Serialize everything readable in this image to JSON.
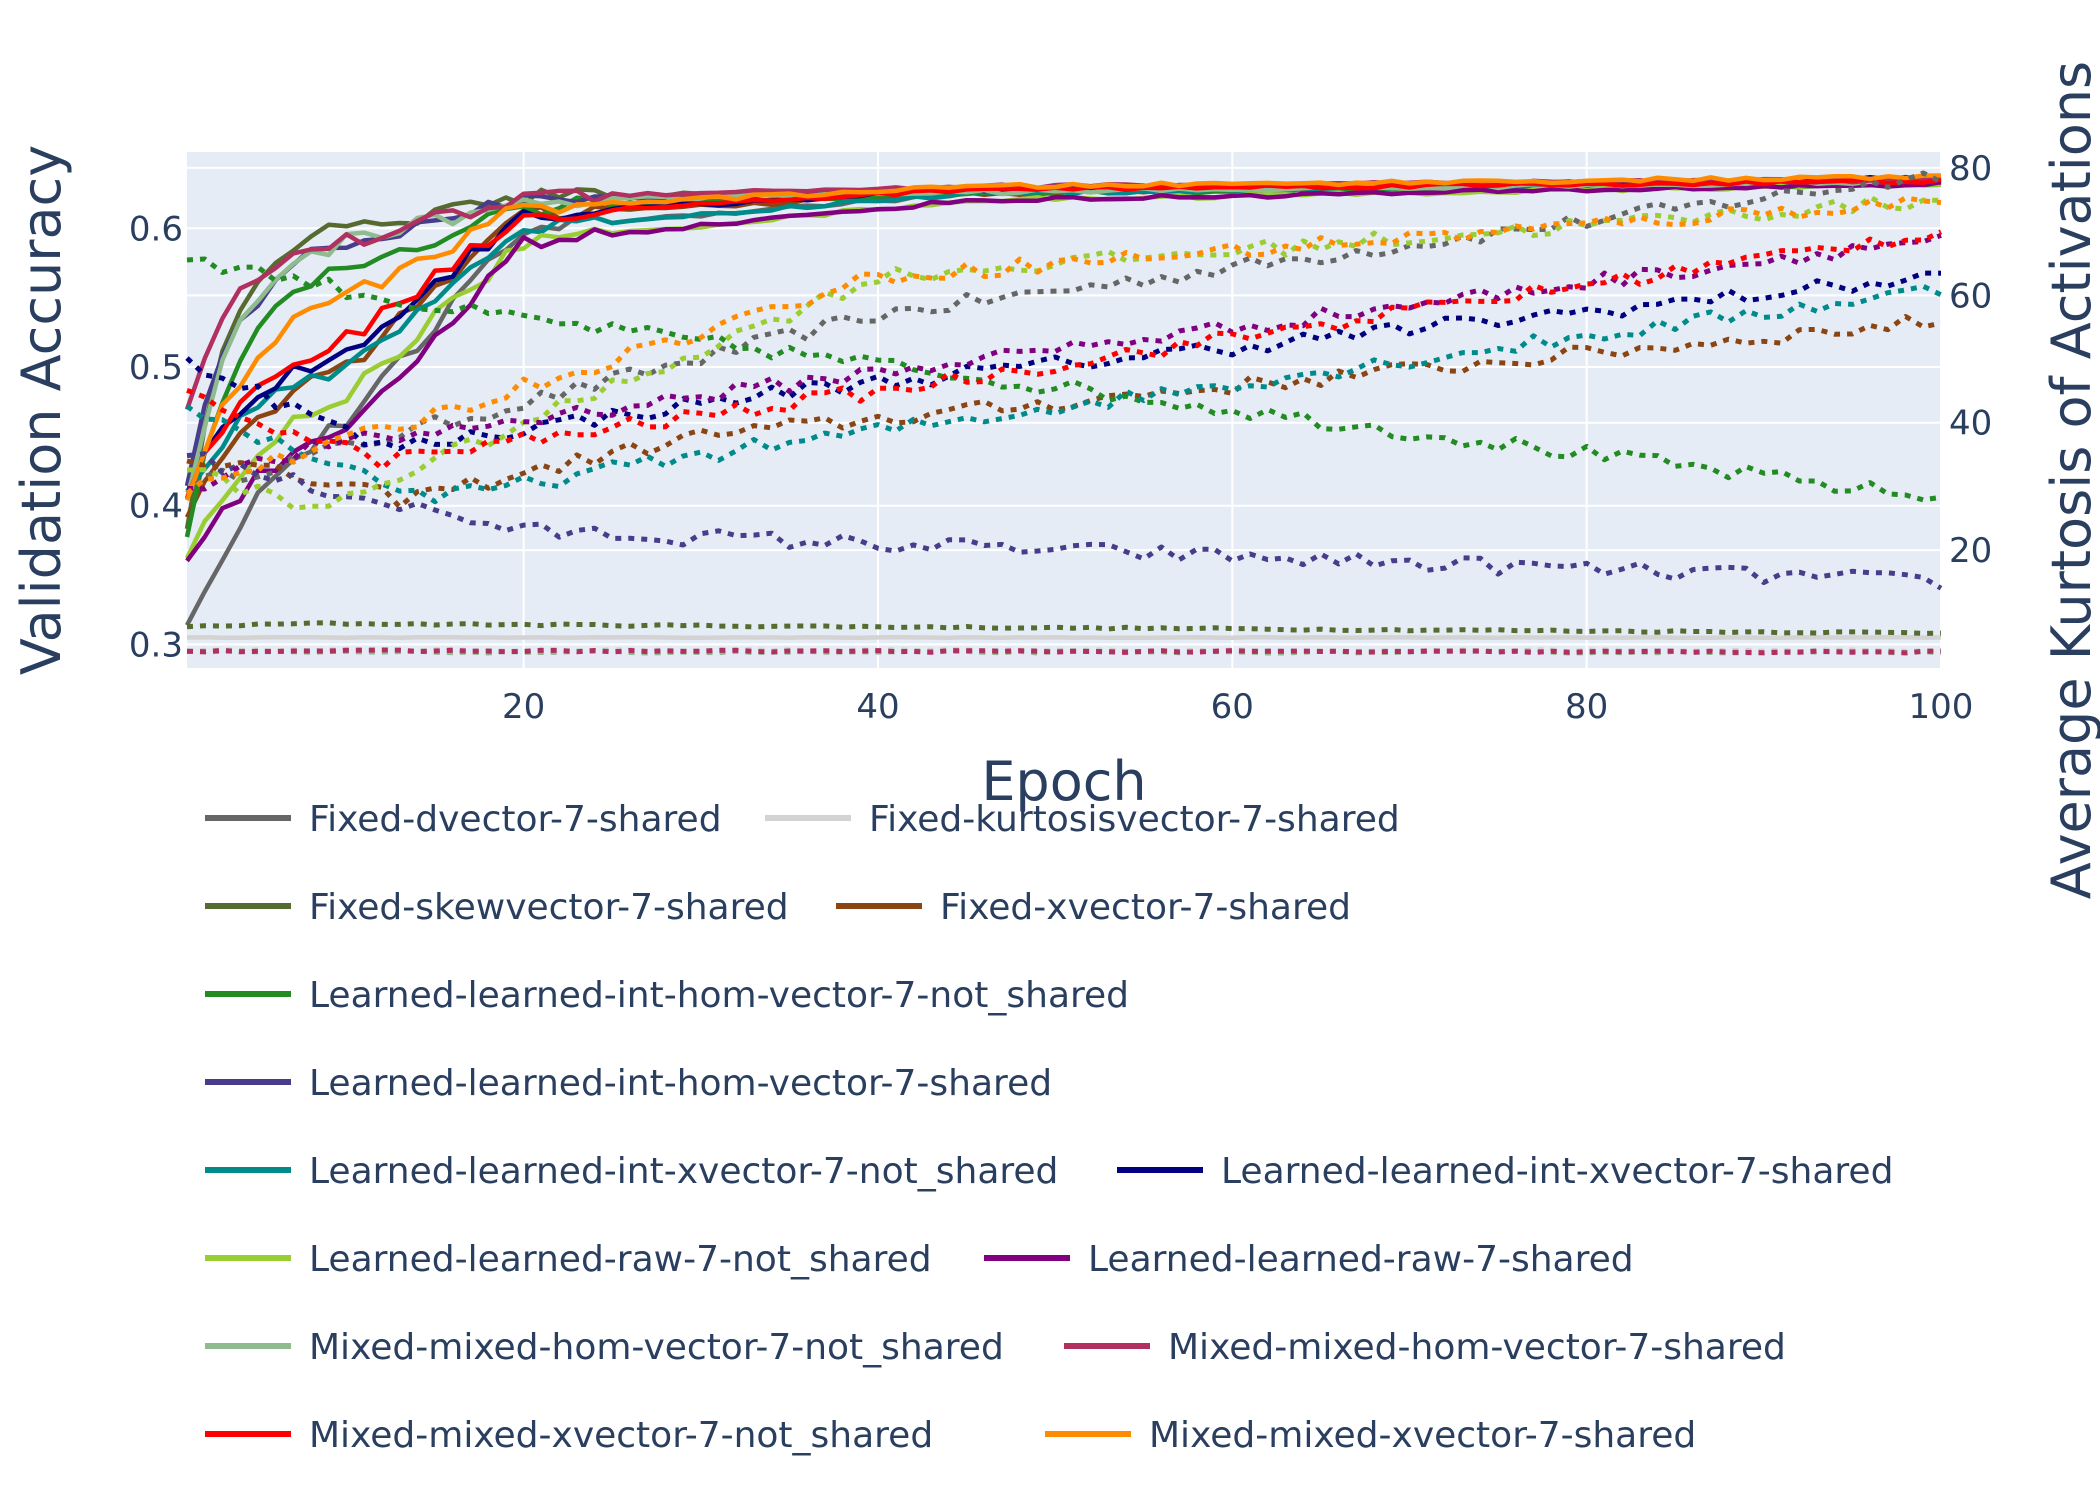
{
  "chart_data": {
    "type": "line",
    "xlabel": "Epoch",
    "ylabel": "Validation Accuracy",
    "y2label": "Average Kurtosis of Activations",
    "xlim": [
      1,
      100
    ],
    "ylim": [
      0.283,
      0.655
    ],
    "y2lim": [
      1.5,
      82.5
    ],
    "xticks": [
      20,
      40,
      60,
      80,
      100
    ],
    "yticks": [
      0.3,
      0.4,
      0.5,
      0.6
    ],
    "y2ticks": [
      20,
      40,
      60,
      80
    ],
    "grid": true,
    "legend_position": "bottom",
    "line_styles": {
      "accuracy": "solid (left axis)",
      "kurtosis": "dotted (right axis)"
    },
    "series": [
      {
        "name": "Fixed-dvector-7-shared",
        "color": "#666666",
        "accuracy": {
          "start": 0.31,
          "early": 0.46,
          "mid": 0.6,
          "plateau": 0.625,
          "end": 0.636,
          "rate": 0.15
        },
        "kurtosis": {
          "start": 30,
          "end": 79,
          "x1": 1,
          "v1": 30,
          "x2": 40,
          "v2": 57
        }
      },
      {
        "name": "Fixed-kurtosisvector-7-shared",
        "color": "#d3d3d3",
        "accuracy": {
          "start": 0.305,
          "early": 0.305,
          "mid": 0.305,
          "plateau": 0.305,
          "end": 0.305,
          "rate": 0.1
        },
        "kurtosis": {
          "start": 4.3,
          "end": 4.2,
          "x1": 1,
          "v1": 4.3,
          "x2": 1,
          "v2": 4.3
        }
      },
      {
        "name": "Fixed-skewvector-7-shared",
        "color": "#556b2f",
        "accuracy": {
          "start": 0.38,
          "early": 0.6,
          "mid": 0.622,
          "plateau": 0.628,
          "end": 0.632,
          "rate": 0.35
        },
        "kurtosis": {
          "start": 8,
          "end": 7,
          "x1": 8,
          "v1": 8.5,
          "x2": 8,
          "v2": 8.5
        }
      },
      {
        "name": "Fixed-xvector-7-shared",
        "color": "#8b4513",
        "accuracy": {
          "start": 0.39,
          "early": 0.5,
          "mid": 0.61,
          "plateau": 0.625,
          "end": 0.634,
          "rate": 0.17
        },
        "kurtosis": {
          "start": 35,
          "end": 56,
          "x1": 13,
          "v1": 28,
          "x2": 30,
          "v2": 38
        }
      },
      {
        "name": "Learned-learned-int-hom-vector-7-not_shared",
        "color": "#228b22",
        "accuracy": {
          "start": 0.38,
          "early": 0.57,
          "mid": 0.615,
          "plateau": 0.625,
          "end": 0.632,
          "rate": 0.25
        },
        "kurtosis": {
          "start": 66,
          "end": 28,
          "x1": 1,
          "v1": 66,
          "x2": 15,
          "v2": 58
        }
      },
      {
        "name": "Learned-learned-int-hom-vector-7-shared",
        "color": "#483d8b",
        "accuracy": {
          "start": 0.42,
          "early": 0.59,
          "mid": 0.62,
          "plateau": 0.628,
          "end": 0.634,
          "rate": 0.25
        },
        "kurtosis": {
          "start": 36,
          "end": 15,
          "x1": 3,
          "v1": 33,
          "x2": 20,
          "v2": 23
        }
      },
      {
        "name": "Learned-learned-int-xvector-7-not_shared",
        "color": "#008b8b",
        "accuracy": {
          "start": 0.41,
          "early": 0.5,
          "mid": 0.6,
          "plateau": 0.625,
          "end": 0.634,
          "rate": 0.17
        },
        "kurtosis": {
          "start": 42,
          "end": 61,
          "x1": 15,
          "v1": 28,
          "x2": 30,
          "v2": 35
        }
      },
      {
        "name": "Learned-learned-int-xvector-7-shared",
        "color": "#000080",
        "accuracy": {
          "start": 0.41,
          "early": 0.51,
          "mid": 0.61,
          "plateau": 0.628,
          "end": 0.636,
          "rate": 0.2
        },
        "kurtosis": {
          "start": 50,
          "end": 63,
          "x1": 12,
          "v1": 36,
          "x2": 35,
          "v2": 45
        }
      },
      {
        "name": "Learned-learned-raw-7-not_shared",
        "color": "#9acd32",
        "accuracy": {
          "start": 0.36,
          "early": 0.48,
          "mid": 0.59,
          "plateau": 0.62,
          "end": 0.632,
          "rate": 0.15
        },
        "kurtosis": {
          "start": 33,
          "end": 75,
          "x1": 8,
          "v1": 26,
          "x2": 40,
          "v2": 63
        }
      },
      {
        "name": "Learned-learned-raw-7-shared",
        "color": "#800080",
        "accuracy": {
          "start": 0.365,
          "early": 0.45,
          "mid": 0.59,
          "plateau": 0.62,
          "end": 0.632,
          "rate": 0.15
        },
        "kurtosis": {
          "start": 30,
          "end": 69,
          "x1": 8,
          "v1": 36,
          "x2": 40,
          "v2": 48
        }
      },
      {
        "name": "Mixed-mixed-hom-vector-7-not_shared",
        "color": "#8fbc8f",
        "accuracy": {
          "start": 0.4,
          "early": 0.59,
          "mid": 0.62,
          "plateau": 0.626,
          "end": 0.634,
          "rate": 0.3
        },
        "kurtosis": {
          "start": 4,
          "end": 4,
          "x1": 1,
          "v1": 4,
          "x2": 1,
          "v2": 4
        }
      },
      {
        "name": "Mixed-mixed-hom-vector-7-shared",
        "color": "#b03060",
        "accuracy": {
          "start": 0.47,
          "early": 0.59,
          "mid": 0.623,
          "plateau": 0.63,
          "end": 0.635,
          "rate": 0.3
        },
        "kurtosis": {
          "start": 4.2,
          "end": 4.0,
          "x1": 1,
          "v1": 4.2,
          "x2": 1,
          "v2": 4.2
        }
      },
      {
        "name": "Mixed-mixed-xvector-7-not_shared",
        "color": "#ff0000",
        "accuracy": {
          "start": 0.41,
          "early": 0.52,
          "mid": 0.61,
          "plateau": 0.628,
          "end": 0.634,
          "rate": 0.18
        },
        "kurtosis": {
          "start": 44,
          "end": 70,
          "x1": 12,
          "v1": 34,
          "x2": 40,
          "v2": 45
        }
      },
      {
        "name": "Mixed-mixed-xvector-7-shared",
        "color": "#ff8c00",
        "accuracy": {
          "start": 0.4,
          "early": 0.55,
          "mid": 0.615,
          "plateau": 0.63,
          "end": 0.637,
          "rate": 0.22
        },
        "kurtosis": {
          "start": 30,
          "end": 75,
          "x1": 10,
          "v1": 37,
          "x2": 40,
          "v2": 63
        }
      }
    ]
  }
}
